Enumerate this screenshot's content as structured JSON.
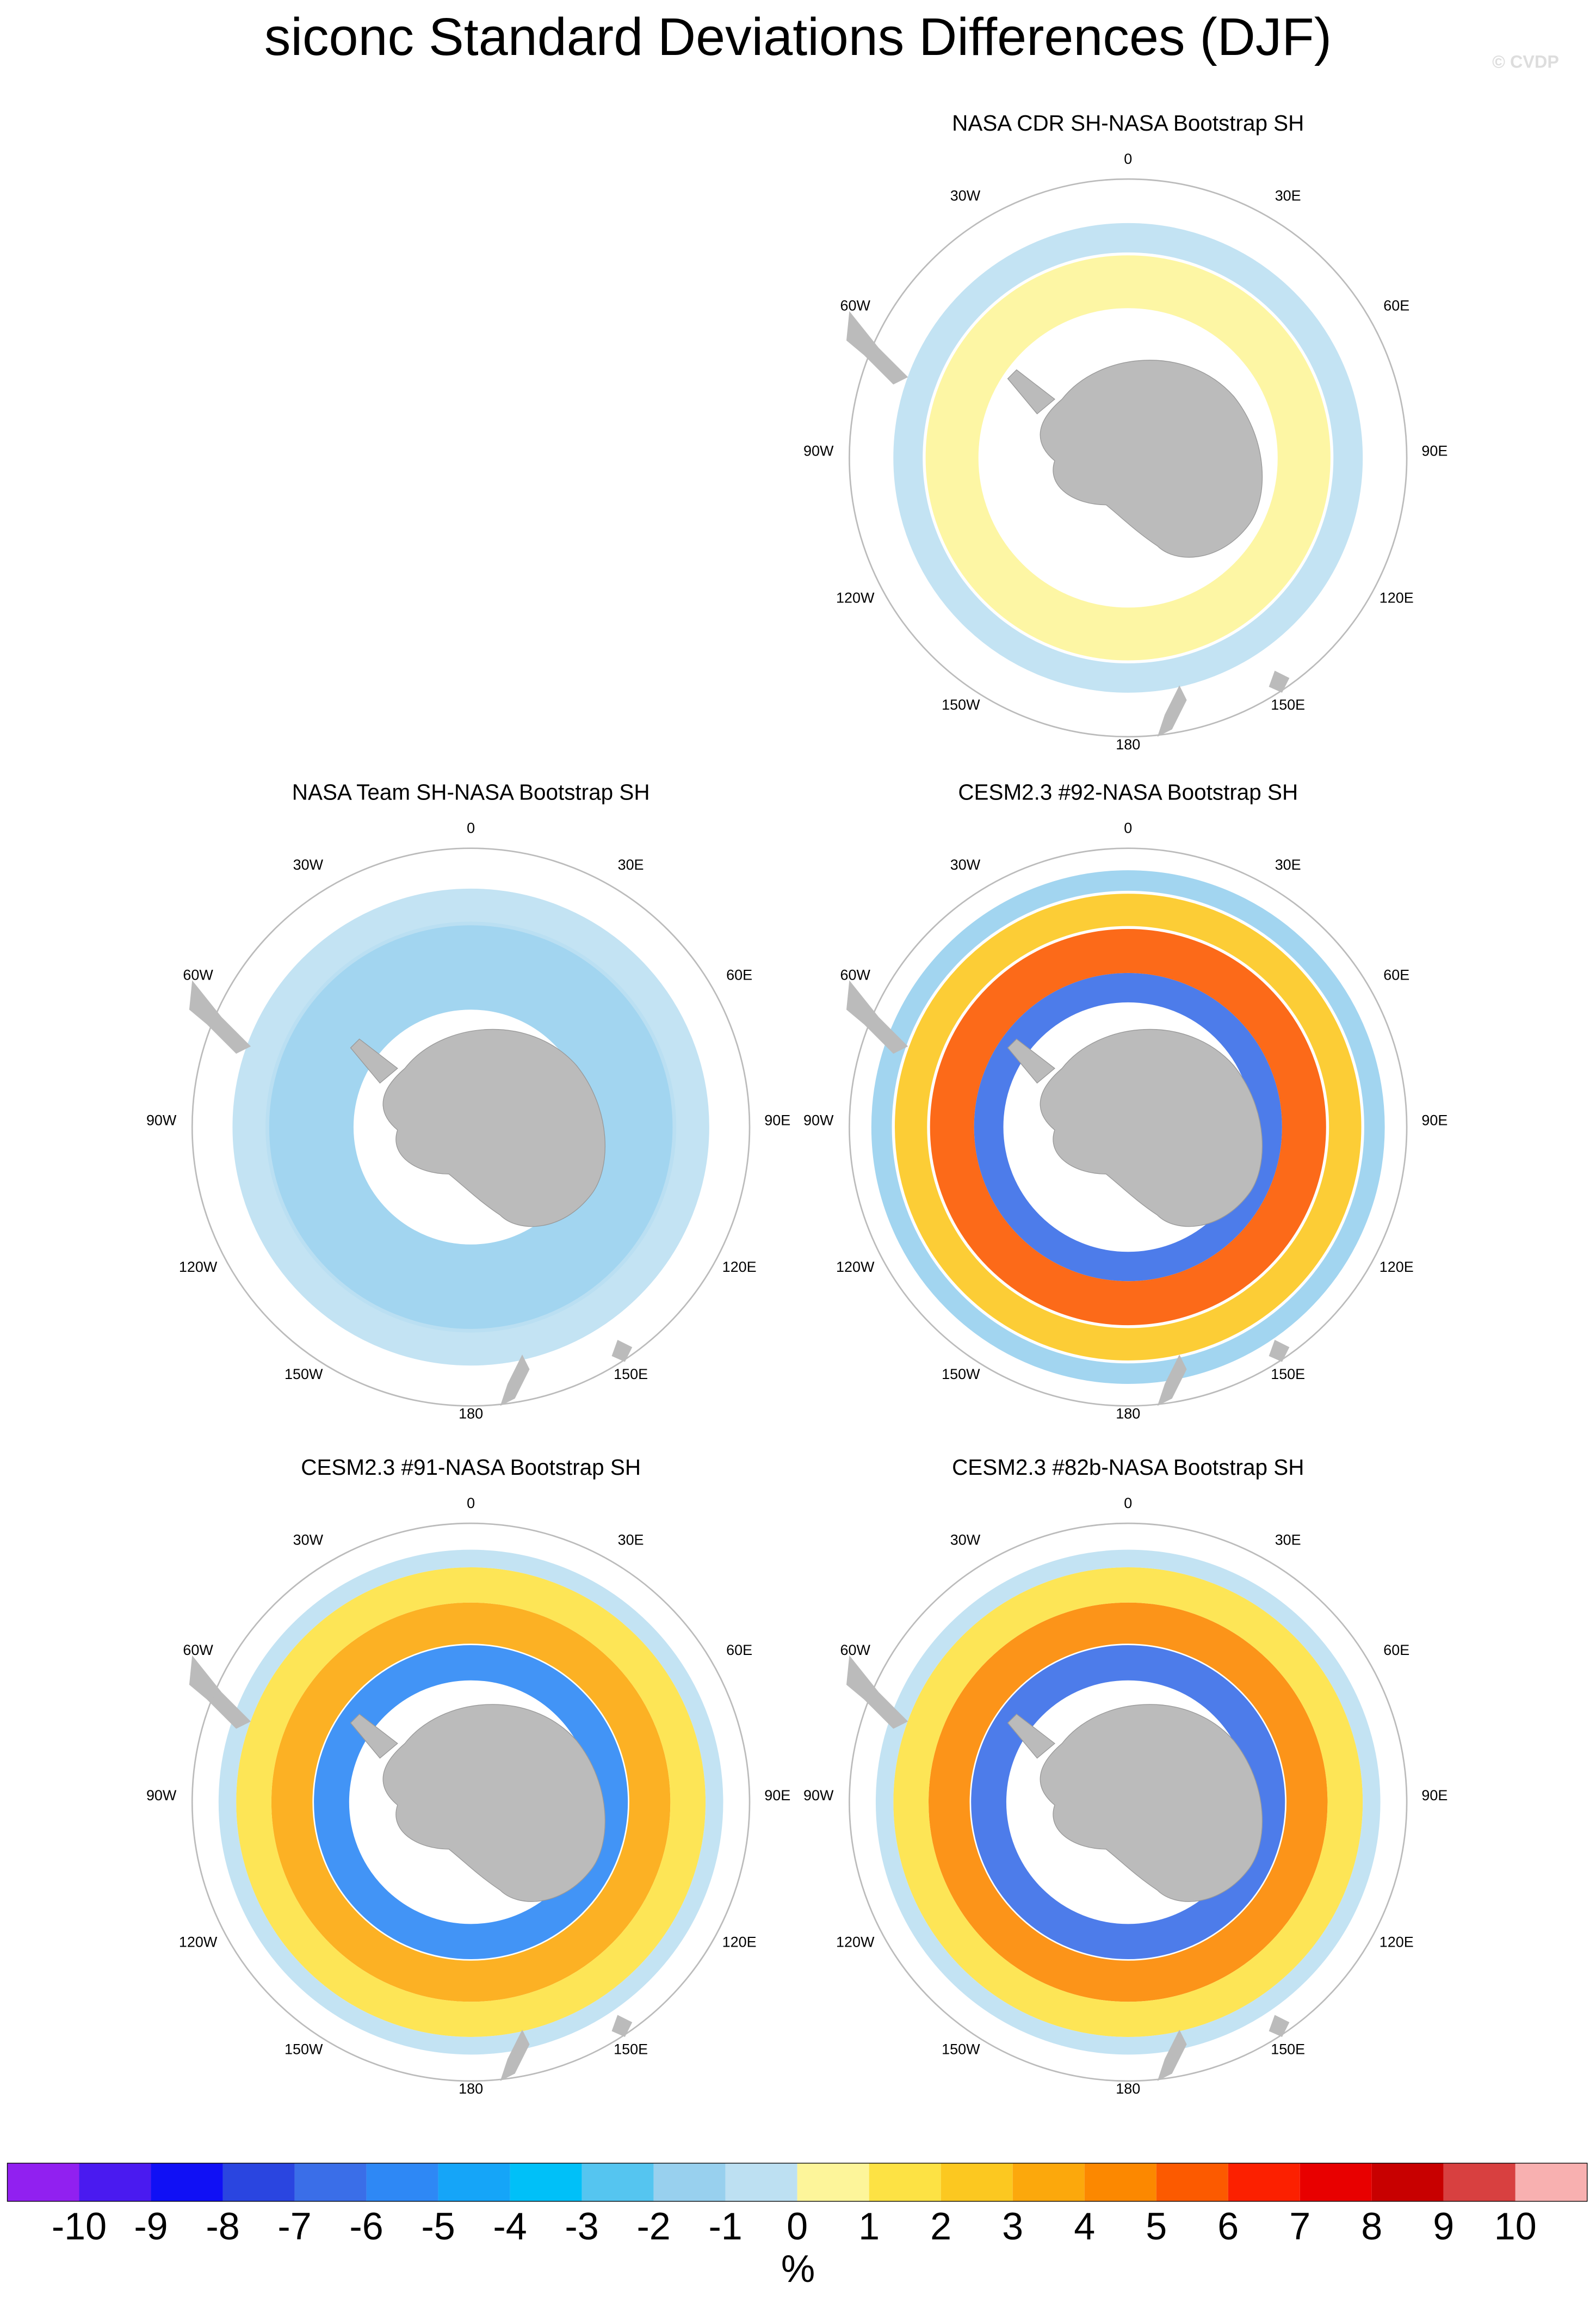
{
  "title": "siconc Standard Deviations Differences (DJF)",
  "watermark": "© CVDP",
  "longitude_labels": [
    "0",
    "30E",
    "60E",
    "90E",
    "120E",
    "150E",
    "180",
    "150W",
    "120W",
    "90W",
    "60W",
    "30W"
  ],
  "panels": [
    {
      "title": "NASA CDR SH-NASA Bootstrap SH"
    },
    {
      "title": "NASA Team SH-NASA Bootstrap SH"
    },
    {
      "title": "CESM2.3 #92-NASA Bootstrap SH"
    },
    {
      "title": "CESM2.3 #91-NASA Bootstrap SH"
    },
    {
      "title": "CESM2.3 #82b-NASA Bootstrap SH"
    }
  ],
  "colorbar": {
    "colors": [
      "#9120f0",
      "#4a1af0",
      "#1010f5",
      "#2a45e0",
      "#3a6ee8",
      "#2e88f5",
      "#15a5f8",
      "#00c0f8",
      "#55c5f0",
      "#98d0ee",
      "#bde0f2",
      "#fdf59a",
      "#fde244",
      "#fcc820",
      "#fca80c",
      "#fc8800",
      "#fc5a00",
      "#fc2000",
      "#e80000",
      "#c80000",
      "#d84040",
      "#f8b0b0"
    ],
    "labels": [
      -10,
      -9,
      -8,
      -7,
      -6,
      -5,
      -4,
      -3,
      -2,
      -1,
      0,
      1,
      2,
      3,
      4,
      5,
      6,
      7,
      8,
      9,
      10
    ],
    "unit": "%"
  }
}
